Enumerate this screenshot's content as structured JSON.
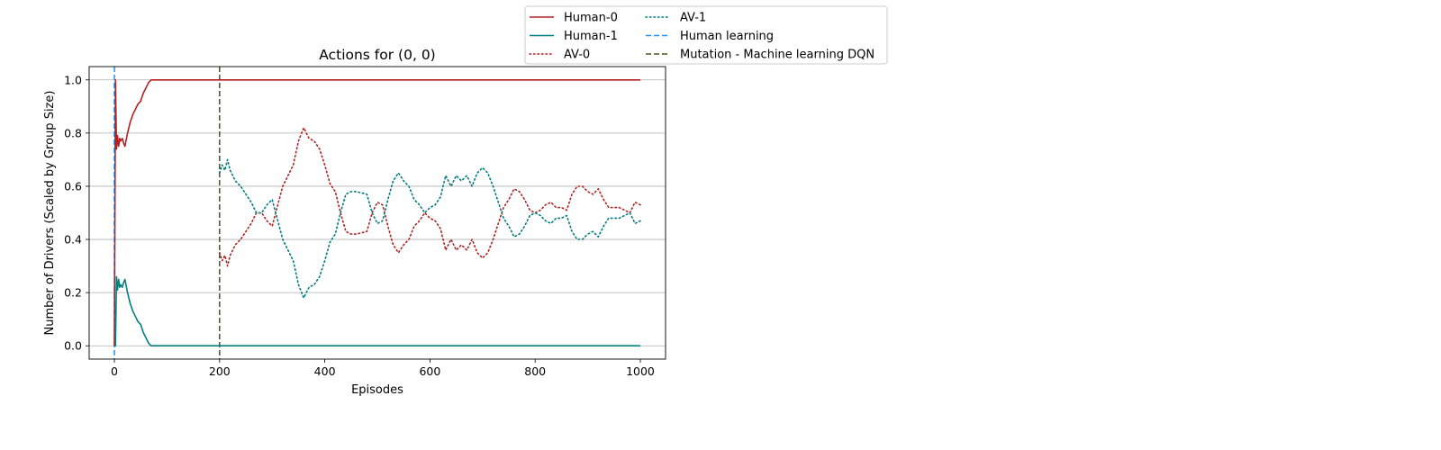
{
  "chart_data": {
    "type": "line",
    "title": "Actions for (0, 0)",
    "xlabel": "Episodes",
    "ylabel": "Number of Drivers (Scaled by Group Size)",
    "xlim": [
      -48,
      1048
    ],
    "ylim": [
      -0.05,
      1.05
    ],
    "xticks": [
      0,
      200,
      400,
      600,
      800,
      1000
    ],
    "yticks": [
      0.0,
      0.2,
      0.4,
      0.6,
      0.8,
      1.0
    ],
    "xtick_labels": [
      "0",
      "200",
      "400",
      "600",
      "800",
      "1000"
    ],
    "ytick_labels": [
      "0.0",
      "0.2",
      "0.4",
      "0.6",
      "0.8",
      "1.0"
    ],
    "grid": "horizontal",
    "legend_placement": "above-right",
    "series": [
      {
        "name": "Human-0",
        "color": "#b22222",
        "style": "solid",
        "x": [
          0,
          2,
          4,
          6,
          8,
          10,
          12,
          15,
          18,
          20,
          25,
          30,
          35,
          40,
          45,
          50,
          55,
          60,
          65,
          70,
          75,
          80,
          100,
          200,
          300,
          400,
          500,
          600,
          700,
          800,
          900,
          1000
        ],
        "y": [
          0.0,
          1.0,
          0.74,
          0.79,
          0.75,
          0.78,
          0.77,
          0.78,
          0.76,
          0.75,
          0.8,
          0.84,
          0.87,
          0.89,
          0.91,
          0.92,
          0.95,
          0.97,
          0.99,
          1.0,
          1.0,
          1.0,
          1.0,
          1.0,
          1.0,
          1.0,
          1.0,
          1.0,
          1.0,
          1.0,
          1.0,
          1.0
        ]
      },
      {
        "name": "Human-1",
        "color": "#008080",
        "style": "solid",
        "x": [
          0,
          2,
          4,
          6,
          8,
          10,
          12,
          15,
          18,
          20,
          25,
          30,
          35,
          40,
          45,
          50,
          55,
          60,
          65,
          70,
          75,
          80,
          100,
          200,
          300,
          400,
          500,
          600,
          700,
          800,
          900,
          1000
        ],
        "y": [
          0.0,
          0.0,
          0.26,
          0.21,
          0.25,
          0.22,
          0.23,
          0.22,
          0.24,
          0.25,
          0.2,
          0.16,
          0.13,
          0.11,
          0.09,
          0.08,
          0.05,
          0.03,
          0.01,
          0.0,
          0.0,
          0.0,
          0.0,
          0.0,
          0.0,
          0.0,
          0.0,
          0.0,
          0.0,
          0.0,
          0.0,
          0.0
        ]
      },
      {
        "name": "AV-0",
        "color": "#b22222",
        "style": "dotted",
        "x": [
          200,
          205,
          210,
          215,
          220,
          230,
          240,
          250,
          260,
          270,
          280,
          290,
          300,
          320,
          340,
          350,
          360,
          370,
          380,
          390,
          400,
          410,
          420,
          430,
          440,
          450,
          460,
          480,
          490,
          500,
          510,
          520,
          530,
          540,
          550,
          560,
          570,
          580,
          590,
          600,
          610,
          620,
          630,
          640,
          650,
          660,
          670,
          680,
          690,
          700,
          710,
          720,
          730,
          740,
          750,
          760,
          770,
          780,
          790,
          800,
          810,
          820,
          830,
          840,
          850,
          860,
          870,
          880,
          890,
          900,
          910,
          920,
          930,
          940,
          950,
          960,
          970,
          980,
          990,
          1000
        ],
        "y": [
          0.35,
          0.32,
          0.34,
          0.3,
          0.34,
          0.38,
          0.4,
          0.43,
          0.46,
          0.5,
          0.5,
          0.47,
          0.45,
          0.6,
          0.68,
          0.77,
          0.82,
          0.78,
          0.77,
          0.74,
          0.68,
          0.61,
          0.58,
          0.5,
          0.43,
          0.42,
          0.42,
          0.43,
          0.5,
          0.54,
          0.53,
          0.45,
          0.38,
          0.35,
          0.38,
          0.4,
          0.45,
          0.47,
          0.5,
          0.48,
          0.47,
          0.44,
          0.36,
          0.4,
          0.36,
          0.38,
          0.36,
          0.4,
          0.35,
          0.33,
          0.35,
          0.4,
          0.46,
          0.52,
          0.55,
          0.59,
          0.58,
          0.55,
          0.51,
          0.5,
          0.51,
          0.53,
          0.54,
          0.52,
          0.52,
          0.51,
          0.57,
          0.6,
          0.6,
          0.58,
          0.57,
          0.59,
          0.55,
          0.52,
          0.52,
          0.52,
          0.51,
          0.5,
          0.54,
          0.53
        ]
      },
      {
        "name": "AV-1",
        "color": "#007b80",
        "style": "dotted",
        "x": [
          200,
          205,
          210,
          215,
          220,
          230,
          240,
          250,
          260,
          270,
          280,
          290,
          300,
          320,
          340,
          350,
          360,
          370,
          380,
          390,
          400,
          410,
          420,
          430,
          440,
          450,
          460,
          480,
          490,
          500,
          510,
          520,
          530,
          540,
          550,
          560,
          570,
          580,
          590,
          600,
          610,
          620,
          630,
          640,
          650,
          660,
          670,
          680,
          690,
          700,
          710,
          720,
          730,
          740,
          750,
          760,
          770,
          780,
          790,
          800,
          810,
          820,
          830,
          840,
          850,
          860,
          870,
          880,
          890,
          900,
          910,
          920,
          930,
          940,
          950,
          960,
          970,
          980,
          990,
          1000
        ],
        "y": [
          0.65,
          0.68,
          0.66,
          0.7,
          0.66,
          0.62,
          0.6,
          0.57,
          0.54,
          0.5,
          0.5,
          0.53,
          0.55,
          0.4,
          0.32,
          0.23,
          0.18,
          0.22,
          0.23,
          0.26,
          0.32,
          0.39,
          0.42,
          0.5,
          0.57,
          0.58,
          0.58,
          0.57,
          0.5,
          0.46,
          0.47,
          0.55,
          0.62,
          0.65,
          0.62,
          0.6,
          0.55,
          0.53,
          0.5,
          0.52,
          0.53,
          0.56,
          0.64,
          0.6,
          0.64,
          0.62,
          0.64,
          0.6,
          0.65,
          0.67,
          0.65,
          0.6,
          0.54,
          0.48,
          0.45,
          0.41,
          0.42,
          0.45,
          0.49,
          0.5,
          0.49,
          0.47,
          0.46,
          0.48,
          0.48,
          0.49,
          0.43,
          0.4,
          0.4,
          0.42,
          0.43,
          0.41,
          0.45,
          0.48,
          0.48,
          0.48,
          0.49,
          0.5,
          0.46,
          0.47
        ]
      }
    ],
    "vlines": [
      {
        "name": "Human learning",
        "x": 0,
        "color": "#1e90ff",
        "style": "dashed"
      },
      {
        "name": "Mutation - Machine learning DQN",
        "x": 200,
        "color": "#4b5320",
        "style": "dashed"
      }
    ],
    "legend_entries": [
      "Human-0",
      "Human-1",
      "AV-0",
      "AV-1",
      "Human learning",
      "Mutation - Machine learning DQN"
    ]
  }
}
